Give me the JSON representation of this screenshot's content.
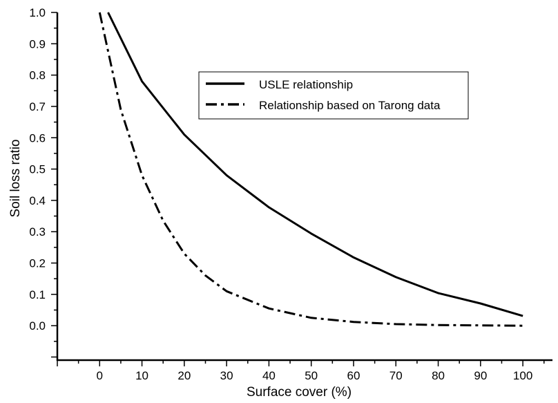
{
  "chart_data": {
    "type": "line",
    "title": "",
    "xlabel": "Surface cover (%)",
    "ylabel": "Soil loss ratio",
    "xlim": [
      -10,
      107
    ],
    "ylim": [
      -0.11,
      1.0
    ],
    "xticks": [
      0,
      10,
      20,
      30,
      40,
      50,
      60,
      70,
      80,
      90,
      100
    ],
    "yticks": [
      0.0,
      0.1,
      0.2,
      0.3,
      0.4,
      0.5,
      0.6,
      0.7,
      0.8,
      0.9,
      1.0
    ],
    "ytick_labels": [
      "0.0",
      "0.1",
      "0.2",
      "0.3",
      "0.4",
      "0.5",
      "0.6",
      "0.7",
      "0.8",
      "0.9",
      "1.0"
    ],
    "grid": false,
    "legend_position": "upper-right, inside plot",
    "series": [
      {
        "name": "USLE relationship",
        "line_style": "solid",
        "color": "#000000",
        "x": [
          2,
          10,
          20,
          30,
          40,
          50,
          60,
          70,
          80,
          90,
          100
        ],
        "y": [
          1.0,
          0.78,
          0.61,
          0.48,
          0.378,
          0.294,
          0.218,
          0.155,
          0.104,
          0.071,
          0.031
        ]
      },
      {
        "name": "Relationship based on Tarong data",
        "line_style": "dash-dot",
        "color": "#000000",
        "x": [
          0,
          5,
          10,
          15,
          20,
          25,
          30,
          40,
          50,
          60,
          70,
          80,
          90,
          100
        ],
        "y": [
          1.0,
          0.69,
          0.48,
          0.335,
          0.23,
          0.16,
          0.11,
          0.055,
          0.025,
          0.012,
          0.005,
          0.002,
          0.001,
          0.0
        ]
      }
    ]
  }
}
